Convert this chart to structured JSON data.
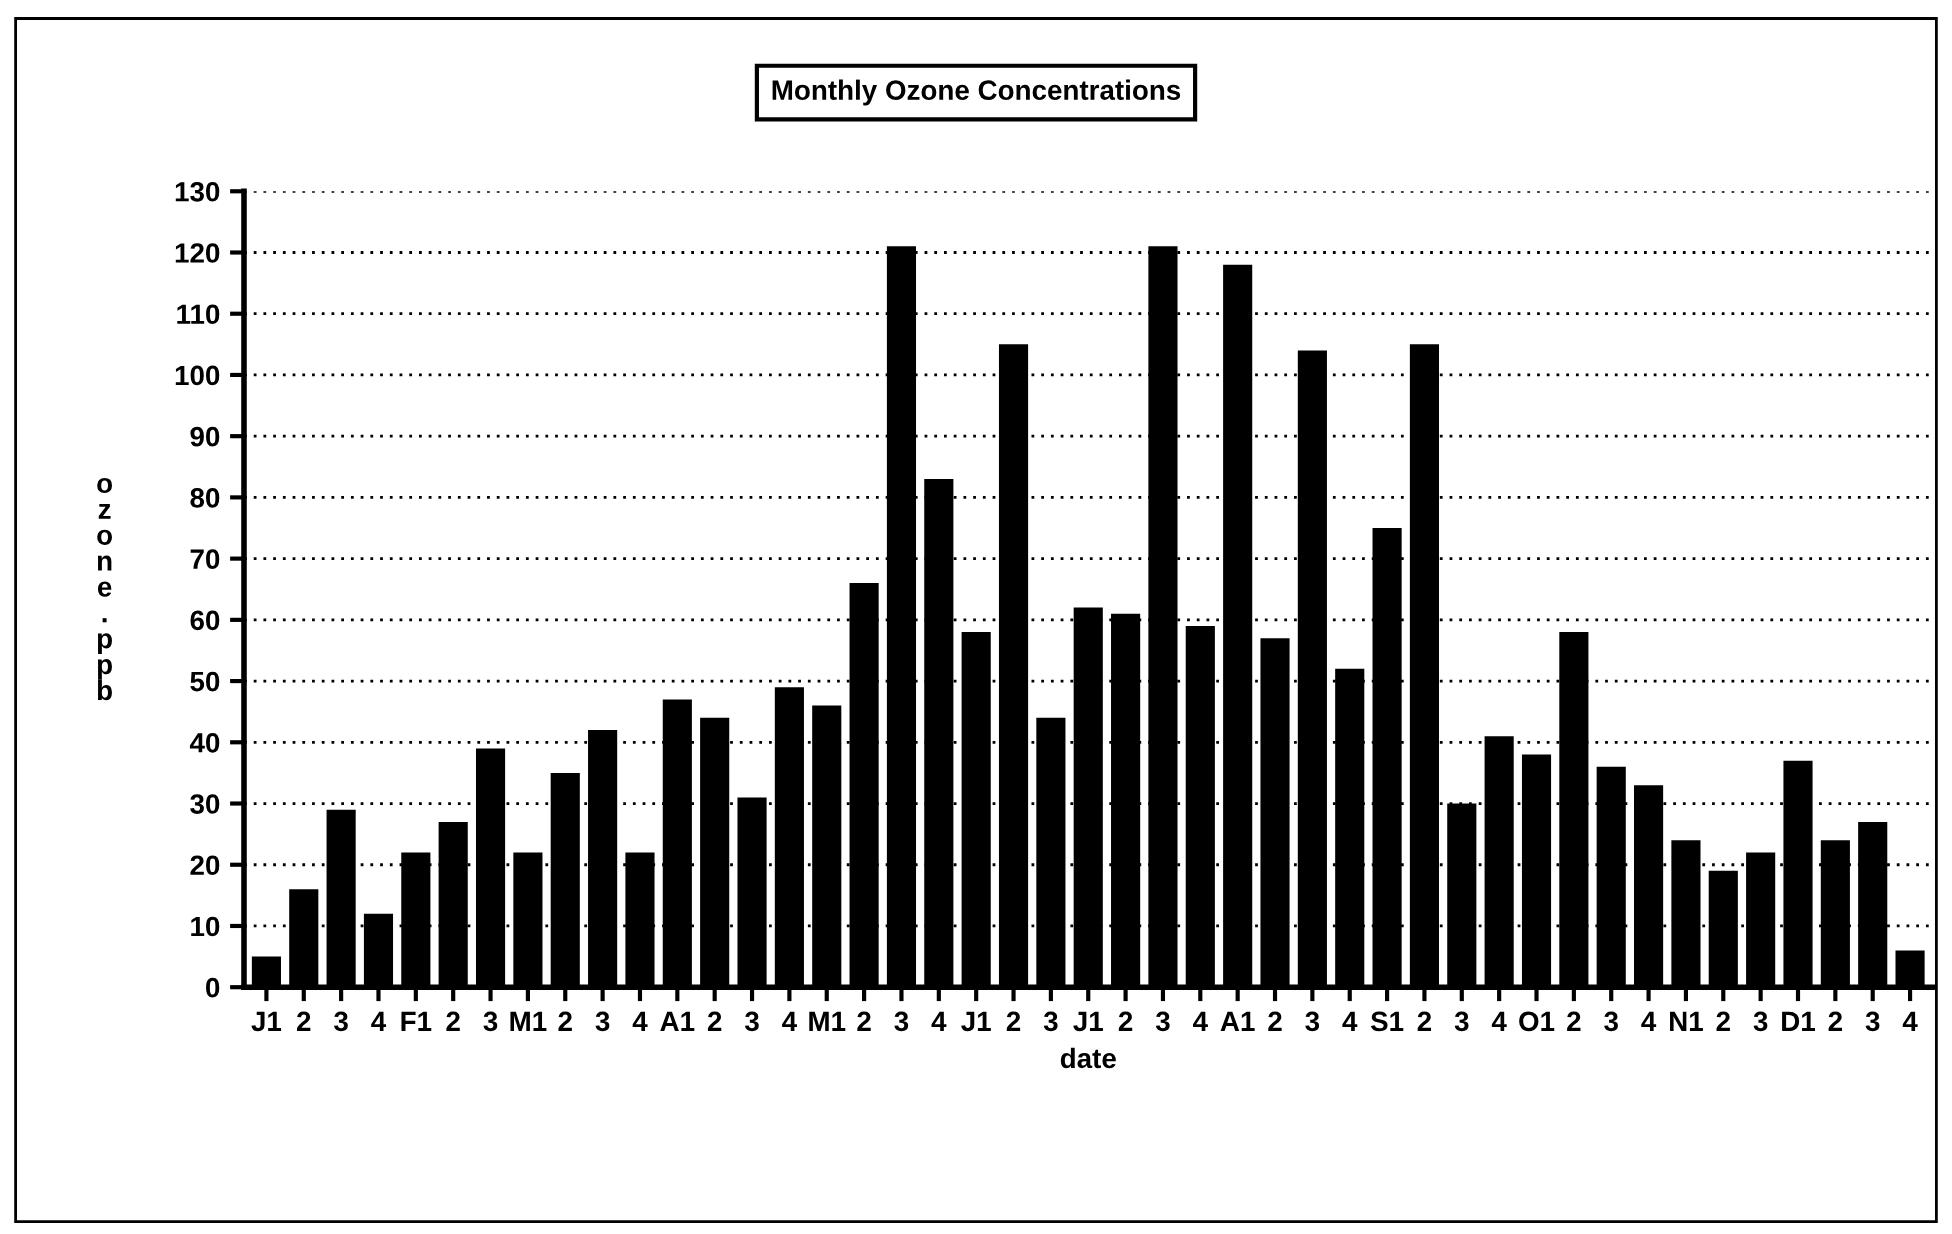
{
  "chart_data": {
    "type": "bar",
    "title": "Monthly Ozone Concentrations",
    "xlabel": "date",
    "ylabel": "ozone.ppb",
    "categories": [
      "J1",
      "2",
      "3",
      "4",
      "F1",
      "2",
      "3",
      "M1",
      "2",
      "3",
      "4",
      "A1",
      "2",
      "3",
      "4",
      "M1",
      "2",
      "3",
      "4",
      "J1",
      "2",
      "3",
      "J1",
      "2",
      "3",
      "4",
      "A1",
      "2",
      "3",
      "4",
      "S1",
      "2",
      "3",
      "4",
      "O1",
      "2",
      "3",
      "4",
      "N1",
      "2",
      "3",
      "D1",
      "2",
      "3",
      "4"
    ],
    "values": [
      5,
      16,
      29,
      12,
      22,
      27,
      39,
      22,
      35,
      42,
      22,
      47,
      44,
      31,
      49,
      46,
      66,
      121,
      83,
      58,
      105,
      44,
      62,
      61,
      121,
      59,
      118,
      57,
      104,
      52,
      75,
      105,
      30,
      41,
      38,
      58,
      36,
      33,
      24,
      19,
      22,
      37,
      24,
      27,
      6
    ],
    "color": "#000000",
    "ylim": [
      0,
      130
    ],
    "yticks": [
      0,
      10,
      20,
      30,
      40,
      50,
      60,
      70,
      80,
      90,
      100,
      110,
      120,
      130
    ],
    "grid": "y",
    "legend": false
  }
}
